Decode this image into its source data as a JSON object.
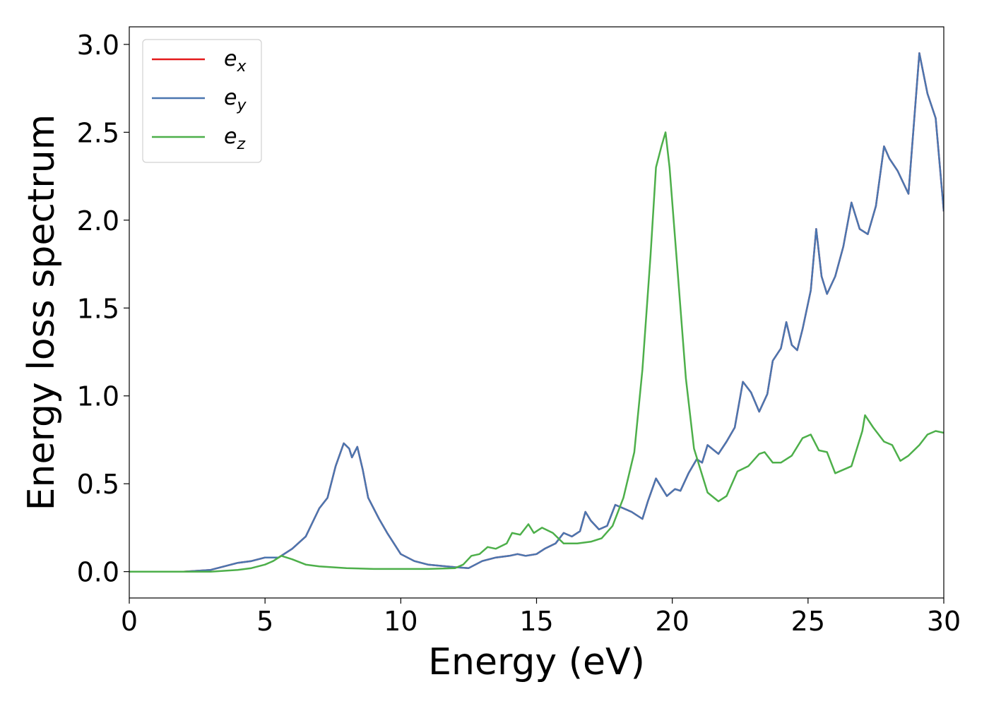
{
  "chart_data": {
    "type": "line",
    "title": "",
    "xlabel": "Energy (eV)",
    "ylabel": "Energy loss spectrum",
    "xlim": [
      0,
      30
    ],
    "ylim": [
      -0.15,
      3.1
    ],
    "xticks": [
      0,
      5,
      10,
      15,
      20,
      25,
      30
    ],
    "xtick_labels": [
      "0",
      "5",
      "10",
      "15",
      "20",
      "25",
      "30"
    ],
    "yticks": [
      0.0,
      0.5,
      1.0,
      1.5,
      2.0,
      2.5,
      3.0
    ],
    "ytick_labels": [
      "0.0",
      "0.5",
      "1.0",
      "1.5",
      "2.0",
      "2.5",
      "3.0"
    ],
    "grid": false,
    "legend_position": "top-left",
    "series": [
      {
        "name": "e",
        "subscript": "x",
        "color": "#e41a1c",
        "points": [
          [
            0,
            0.0
          ],
          [
            1,
            0.0
          ],
          [
            2,
            0.0
          ],
          [
            3,
            0.01
          ],
          [
            3.5,
            0.03
          ],
          [
            4,
            0.05
          ],
          [
            4.5,
            0.06
          ],
          [
            5,
            0.08
          ],
          [
            5.5,
            0.08
          ],
          [
            6,
            0.13
          ],
          [
            6.5,
            0.2
          ],
          [
            7,
            0.36
          ],
          [
            7.3,
            0.42
          ],
          [
            7.6,
            0.6
          ],
          [
            7.9,
            0.73
          ],
          [
            8.1,
            0.7
          ],
          [
            8.2,
            0.65
          ],
          [
            8.4,
            0.71
          ],
          [
            8.6,
            0.58
          ],
          [
            8.8,
            0.42
          ],
          [
            9.2,
            0.3
          ],
          [
            9.5,
            0.22
          ],
          [
            10,
            0.1
          ],
          [
            10.5,
            0.06
          ],
          [
            11,
            0.04
          ],
          [
            12,
            0.025
          ],
          [
            12.5,
            0.02
          ],
          [
            13,
            0.06
          ],
          [
            13.5,
            0.08
          ],
          [
            14,
            0.09
          ],
          [
            14.3,
            0.1
          ],
          [
            14.6,
            0.09
          ],
          [
            15,
            0.1
          ],
          [
            15.3,
            0.13
          ],
          [
            15.7,
            0.16
          ],
          [
            16,
            0.22
          ],
          [
            16.3,
            0.2
          ],
          [
            16.6,
            0.23
          ],
          [
            16.8,
            0.34
          ],
          [
            17,
            0.29
          ],
          [
            17.3,
            0.24
          ],
          [
            17.6,
            0.26
          ],
          [
            17.9,
            0.38
          ],
          [
            18.2,
            0.36
          ],
          [
            18.5,
            0.34
          ],
          [
            18.9,
            0.3
          ],
          [
            19.1,
            0.4
          ],
          [
            19.4,
            0.53
          ],
          [
            19.6,
            0.48
          ],
          [
            19.8,
            0.43
          ],
          [
            20.1,
            0.47
          ],
          [
            20.3,
            0.46
          ],
          [
            20.6,
            0.56
          ],
          [
            20.9,
            0.64
          ],
          [
            21.1,
            0.62
          ],
          [
            21.3,
            0.72
          ],
          [
            21.7,
            0.67
          ],
          [
            22,
            0.74
          ],
          [
            22.3,
            0.82
          ],
          [
            22.6,
            1.08
          ],
          [
            22.9,
            1.02
          ],
          [
            23.2,
            0.91
          ],
          [
            23.5,
            1.01
          ],
          [
            23.7,
            1.2
          ],
          [
            24,
            1.27
          ],
          [
            24.2,
            1.42
          ],
          [
            24.4,
            1.29
          ],
          [
            24.6,
            1.26
          ],
          [
            24.8,
            1.38
          ],
          [
            25.1,
            1.6
          ],
          [
            25.3,
            1.95
          ],
          [
            25.5,
            1.68
          ],
          [
            25.7,
            1.58
          ],
          [
            26,
            1.68
          ],
          [
            26.3,
            1.85
          ],
          [
            26.6,
            2.1
          ],
          [
            26.9,
            1.95
          ],
          [
            27.2,
            1.92
          ],
          [
            27.5,
            2.08
          ],
          [
            27.8,
            2.42
          ],
          [
            28,
            2.35
          ],
          [
            28.3,
            2.28
          ],
          [
            28.7,
            2.15
          ],
          [
            29.1,
            2.95
          ],
          [
            29.4,
            2.72
          ],
          [
            29.7,
            2.58
          ],
          [
            30,
            2.05
          ]
        ]
      },
      {
        "name": "e",
        "subscript": "y",
        "color": "#4a76b0",
        "points": [
          [
            0,
            0.0
          ],
          [
            1,
            0.0
          ],
          [
            2,
            0.0
          ],
          [
            3,
            0.01
          ],
          [
            3.5,
            0.03
          ],
          [
            4,
            0.05
          ],
          [
            4.5,
            0.06
          ],
          [
            5,
            0.08
          ],
          [
            5.5,
            0.08
          ],
          [
            6,
            0.13
          ],
          [
            6.5,
            0.2
          ],
          [
            7,
            0.36
          ],
          [
            7.3,
            0.42
          ],
          [
            7.6,
            0.6
          ],
          [
            7.9,
            0.73
          ],
          [
            8.1,
            0.7
          ],
          [
            8.2,
            0.65
          ],
          [
            8.4,
            0.71
          ],
          [
            8.6,
            0.58
          ],
          [
            8.8,
            0.42
          ],
          [
            9.2,
            0.3
          ],
          [
            9.5,
            0.22
          ],
          [
            10,
            0.1
          ],
          [
            10.5,
            0.06
          ],
          [
            11,
            0.04
          ],
          [
            12,
            0.025
          ],
          [
            12.5,
            0.02
          ],
          [
            13,
            0.06
          ],
          [
            13.5,
            0.08
          ],
          [
            14,
            0.09
          ],
          [
            14.3,
            0.1
          ],
          [
            14.6,
            0.09
          ],
          [
            15,
            0.1
          ],
          [
            15.3,
            0.13
          ],
          [
            15.7,
            0.16
          ],
          [
            16,
            0.22
          ],
          [
            16.3,
            0.2
          ],
          [
            16.6,
            0.23
          ],
          [
            16.8,
            0.34
          ],
          [
            17,
            0.29
          ],
          [
            17.3,
            0.24
          ],
          [
            17.6,
            0.26
          ],
          [
            17.9,
            0.38
          ],
          [
            18.2,
            0.36
          ],
          [
            18.5,
            0.34
          ],
          [
            18.9,
            0.3
          ],
          [
            19.1,
            0.4
          ],
          [
            19.4,
            0.53
          ],
          [
            19.6,
            0.48
          ],
          [
            19.8,
            0.43
          ],
          [
            20.1,
            0.47
          ],
          [
            20.3,
            0.46
          ],
          [
            20.6,
            0.56
          ],
          [
            20.9,
            0.64
          ],
          [
            21.1,
            0.62
          ],
          [
            21.3,
            0.72
          ],
          [
            21.7,
            0.67
          ],
          [
            22,
            0.74
          ],
          [
            22.3,
            0.82
          ],
          [
            22.6,
            1.08
          ],
          [
            22.9,
            1.02
          ],
          [
            23.2,
            0.91
          ],
          [
            23.5,
            1.01
          ],
          [
            23.7,
            1.2
          ],
          [
            24,
            1.27
          ],
          [
            24.2,
            1.42
          ],
          [
            24.4,
            1.29
          ],
          [
            24.6,
            1.26
          ],
          [
            24.8,
            1.38
          ],
          [
            25.1,
            1.6
          ],
          [
            25.3,
            1.95
          ],
          [
            25.5,
            1.68
          ],
          [
            25.7,
            1.58
          ],
          [
            26,
            1.68
          ],
          [
            26.3,
            1.85
          ],
          [
            26.6,
            2.1
          ],
          [
            26.9,
            1.95
          ],
          [
            27.2,
            1.92
          ],
          [
            27.5,
            2.08
          ],
          [
            27.8,
            2.42
          ],
          [
            28,
            2.35
          ],
          [
            28.3,
            2.28
          ],
          [
            28.7,
            2.15
          ],
          [
            29.1,
            2.95
          ],
          [
            29.4,
            2.72
          ],
          [
            29.7,
            2.58
          ],
          [
            30,
            2.05
          ]
        ]
      },
      {
        "name": "e",
        "subscript": "z",
        "color": "#4daf4a",
        "points": [
          [
            0,
            0.0
          ],
          [
            2,
            0.0
          ],
          [
            3,
            0.0
          ],
          [
            4,
            0.01
          ],
          [
            4.5,
            0.02
          ],
          [
            5,
            0.04
          ],
          [
            5.3,
            0.06
          ],
          [
            5.6,
            0.09
          ],
          [
            6,
            0.07
          ],
          [
            6.5,
            0.04
          ],
          [
            7,
            0.03
          ],
          [
            8,
            0.02
          ],
          [
            9,
            0.015
          ],
          [
            10,
            0.015
          ],
          [
            11,
            0.015
          ],
          [
            12,
            0.02
          ],
          [
            12.3,
            0.04
          ],
          [
            12.6,
            0.09
          ],
          [
            12.9,
            0.1
          ],
          [
            13.2,
            0.14
          ],
          [
            13.5,
            0.13
          ],
          [
            13.9,
            0.16
          ],
          [
            14.1,
            0.22
          ],
          [
            14.4,
            0.21
          ],
          [
            14.7,
            0.27
          ],
          [
            14.9,
            0.22
          ],
          [
            15.2,
            0.25
          ],
          [
            15.6,
            0.22
          ],
          [
            16,
            0.16
          ],
          [
            16.5,
            0.16
          ],
          [
            17,
            0.17
          ],
          [
            17.4,
            0.19
          ],
          [
            17.8,
            0.26
          ],
          [
            18.2,
            0.42
          ],
          [
            18.6,
            0.68
          ],
          [
            18.9,
            1.15
          ],
          [
            19.2,
            1.8
          ],
          [
            19.4,
            2.3
          ],
          [
            19.6,
            2.42
          ],
          [
            19.75,
            2.5
          ],
          [
            19.9,
            2.3
          ],
          [
            20.2,
            1.7
          ],
          [
            20.5,
            1.1
          ],
          [
            20.8,
            0.7
          ],
          [
            21.3,
            0.45
          ],
          [
            21.7,
            0.4
          ],
          [
            22,
            0.43
          ],
          [
            22.4,
            0.57
          ],
          [
            22.8,
            0.6
          ],
          [
            23.2,
            0.67
          ],
          [
            23.4,
            0.68
          ],
          [
            23.7,
            0.62
          ],
          [
            24,
            0.62
          ],
          [
            24.4,
            0.66
          ],
          [
            24.8,
            0.76
          ],
          [
            25.1,
            0.78
          ],
          [
            25.4,
            0.69
          ],
          [
            25.7,
            0.68
          ],
          [
            26,
            0.56
          ],
          [
            26.3,
            0.58
          ],
          [
            26.6,
            0.6
          ],
          [
            27,
            0.8
          ],
          [
            27.1,
            0.89
          ],
          [
            27.4,
            0.82
          ],
          [
            27.8,
            0.74
          ],
          [
            28.1,
            0.72
          ],
          [
            28.4,
            0.63
          ],
          [
            28.7,
            0.66
          ],
          [
            29.1,
            0.72
          ],
          [
            29.4,
            0.78
          ],
          [
            29.7,
            0.8
          ],
          [
            30,
            0.79
          ]
        ]
      }
    ]
  }
}
